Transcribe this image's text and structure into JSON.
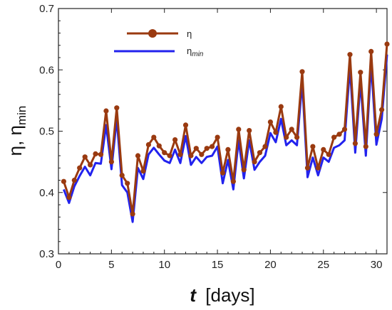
{
  "chart_data": {
    "type": "line",
    "title": "",
    "xlabel_var": "t",
    "xlabel_unit": "[days]",
    "ylabel_main": "η, η",
    "ylabel_sub": "min",
    "xlim": [
      0,
      31
    ],
    "ylim": [
      0.3,
      0.7
    ],
    "xticks": [
      0,
      5,
      10,
      15,
      20,
      25,
      30
    ],
    "yticks": [
      0.3,
      0.4,
      0.5,
      0.6,
      0.7
    ],
    "xtick_labels": [
      "0",
      "5",
      "10",
      "15",
      "20",
      "25",
      "30"
    ],
    "ytick_labels": [
      "0.3",
      "0.4",
      "0.5",
      "0.6",
      "0.7"
    ],
    "grid": false,
    "legend_position": "top-left",
    "x": [
      0.5,
      1,
      1.5,
      2,
      2.5,
      3,
      3.5,
      4,
      4.5,
      5,
      5.5,
      6,
      6.5,
      7,
      7.5,
      8,
      8.5,
      9,
      9.5,
      10,
      10.5,
      11,
      11.5,
      12,
      12.5,
      13,
      13.5,
      14,
      14.5,
      15,
      15.5,
      16,
      16.5,
      17,
      17.5,
      18,
      18.5,
      19,
      19.5,
      20,
      20.5,
      21,
      21.5,
      22,
      22.5,
      23,
      23.5,
      24,
      24.5,
      25,
      25.5,
      26,
      26.5,
      27,
      27.5,
      28,
      28.5,
      29,
      29.5,
      30,
      30.5,
      31
    ],
    "series": [
      {
        "name": "η",
        "name_sub": "",
        "color": "#9a3a10",
        "marker": "circle",
        "values": [
          0.418,
          0.392,
          0.42,
          0.44,
          0.458,
          0.445,
          0.463,
          0.462,
          0.533,
          0.45,
          0.538,
          0.428,
          0.415,
          0.365,
          0.46,
          0.435,
          0.478,
          0.49,
          0.476,
          0.465,
          0.46,
          0.486,
          0.462,
          0.51,
          0.46,
          0.472,
          0.462,
          0.472,
          0.475,
          0.49,
          0.432,
          0.47,
          0.418,
          0.503,
          0.437,
          0.501,
          0.45,
          0.465,
          0.475,
          0.515,
          0.498,
          0.54,
          0.49,
          0.503,
          0.49,
          0.597,
          0.44,
          0.475,
          0.44,
          0.47,
          0.462,
          0.49,
          0.495,
          0.503,
          0.625,
          0.48,
          0.596,
          0.475,
          0.63,
          0.495,
          0.535,
          0.642
        ]
      },
      {
        "name": "η",
        "name_sub": "min",
        "color": "#2222ee",
        "marker": "none",
        "values": [
          0.405,
          0.383,
          0.41,
          0.427,
          0.442,
          0.428,
          0.448,
          0.447,
          0.51,
          0.438,
          0.52,
          0.412,
          0.4,
          0.352,
          0.44,
          0.422,
          0.462,
          0.473,
          0.462,
          0.452,
          0.448,
          0.47,
          0.448,
          0.492,
          0.445,
          0.458,
          0.448,
          0.458,
          0.46,
          0.475,
          0.415,
          0.453,
          0.405,
          0.485,
          0.423,
          0.485,
          0.437,
          0.45,
          0.46,
          0.497,
          0.482,
          0.52,
          0.477,
          0.485,
          0.477,
          0.58,
          0.425,
          0.457,
          0.428,
          0.457,
          0.45,
          0.473,
          0.477,
          0.485,
          0.605,
          0.465,
          0.58,
          0.46,
          0.61,
          0.478,
          0.52,
          0.625
        ]
      }
    ]
  }
}
